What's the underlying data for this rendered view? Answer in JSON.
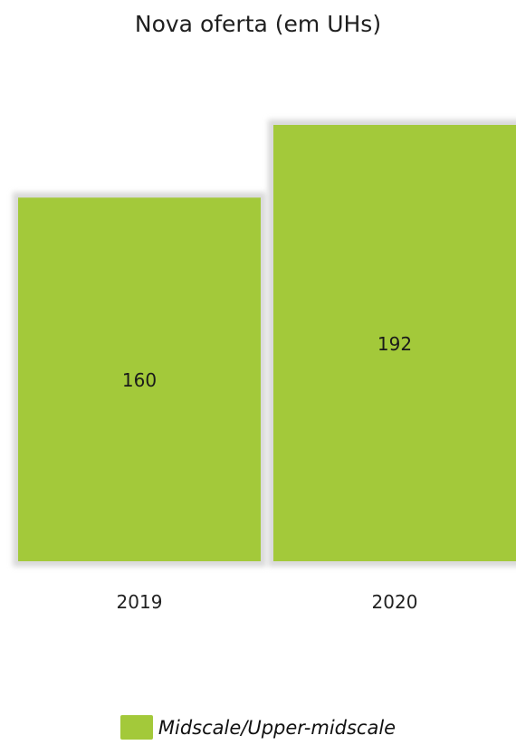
{
  "chart_data": {
    "type": "bar",
    "title": "Nova oferta (em UHs)",
    "categories": [
      "2019",
      "2020"
    ],
    "series": [
      {
        "name": "Midscale/Upper-midscale",
        "values": [
          160,
          192
        ],
        "color": "#a3c93a"
      }
    ],
    "data_labels": [
      "160",
      "192"
    ],
    "ylim": [
      0,
      192
    ],
    "grid": false,
    "axes_visible": false,
    "legend_position": "bottom",
    "bar_shadow_color": "#d9d9d9"
  }
}
